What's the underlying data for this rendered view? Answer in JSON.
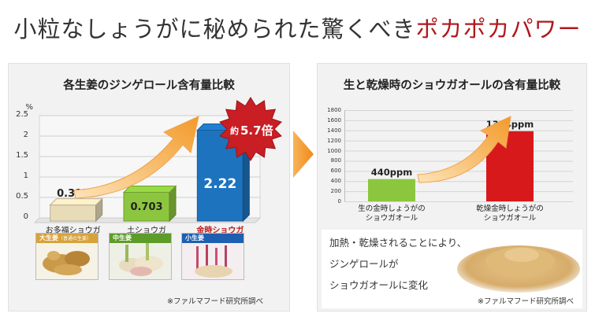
{
  "headline": {
    "main": "小粒なしょうがに秘められた驚くべき",
    "accent": "ポカポカパワー"
  },
  "left_panel": {
    "title": "各生姜のジンゲロール含有量比較",
    "unit": "%",
    "badge": {
      "prefix": "約",
      "value": "5.7倍"
    },
    "photos": [
      {
        "tag_main": "大生姜",
        "tag_sub": "（普通の生姜）"
      },
      {
        "tag_main": "中生姜",
        "tag_sub": ""
      },
      {
        "tag_main": "小生姜",
        "tag_sub": ""
      }
    ],
    "source_note": "※ファルマフード研究所調べ"
  },
  "right_panel": {
    "title": "生と乾燥時のショウガオールの含有量比較",
    "description_lines": [
      "加熱・乾燥されることにより、",
      "ジンゲロールが",
      "ショウガオールに変化"
    ],
    "source_note": "※ファルマフード研究所調べ"
  },
  "chart_data": [
    {
      "type": "bar",
      "title": "各生姜のジンゲロール含有量比較",
      "ylabel": "%",
      "categories": [
        "お多福ショウガ",
        "土ショウガ",
        "金時ショウガ"
      ],
      "values": [
        0.392,
        0.703,
        2.22
      ],
      "value_labels": [
        "0.392",
        "0.703",
        "2.22"
      ],
      "yticks": [
        "0",
        "0.5",
        "1",
        "1.5",
        "2",
        "2.5"
      ],
      "ylim": [
        0,
        2.5
      ],
      "grid": true,
      "colors": [
        "#e8dcb8",
        "#8cc63f",
        "#1e73be"
      ]
    },
    {
      "type": "bar",
      "title": "生と乾燥時のショウガオールの含有量比較",
      "categories": [
        "生の金時しょうがの\nショウガオール",
        "乾燥金時しょうがの\nショウガオール"
      ],
      "values": [
        440,
        1384
      ],
      "value_labels": [
        "440ppm",
        "1384ppm"
      ],
      "yticks": [
        "0",
        "200",
        "400",
        "600",
        "800",
        "1000",
        "1200",
        "1400",
        "1600",
        "1800"
      ],
      "ylim": [
        0,
        1800
      ],
      "grid": true,
      "colors": [
        "#8cc63f",
        "#d7191c"
      ]
    }
  ]
}
